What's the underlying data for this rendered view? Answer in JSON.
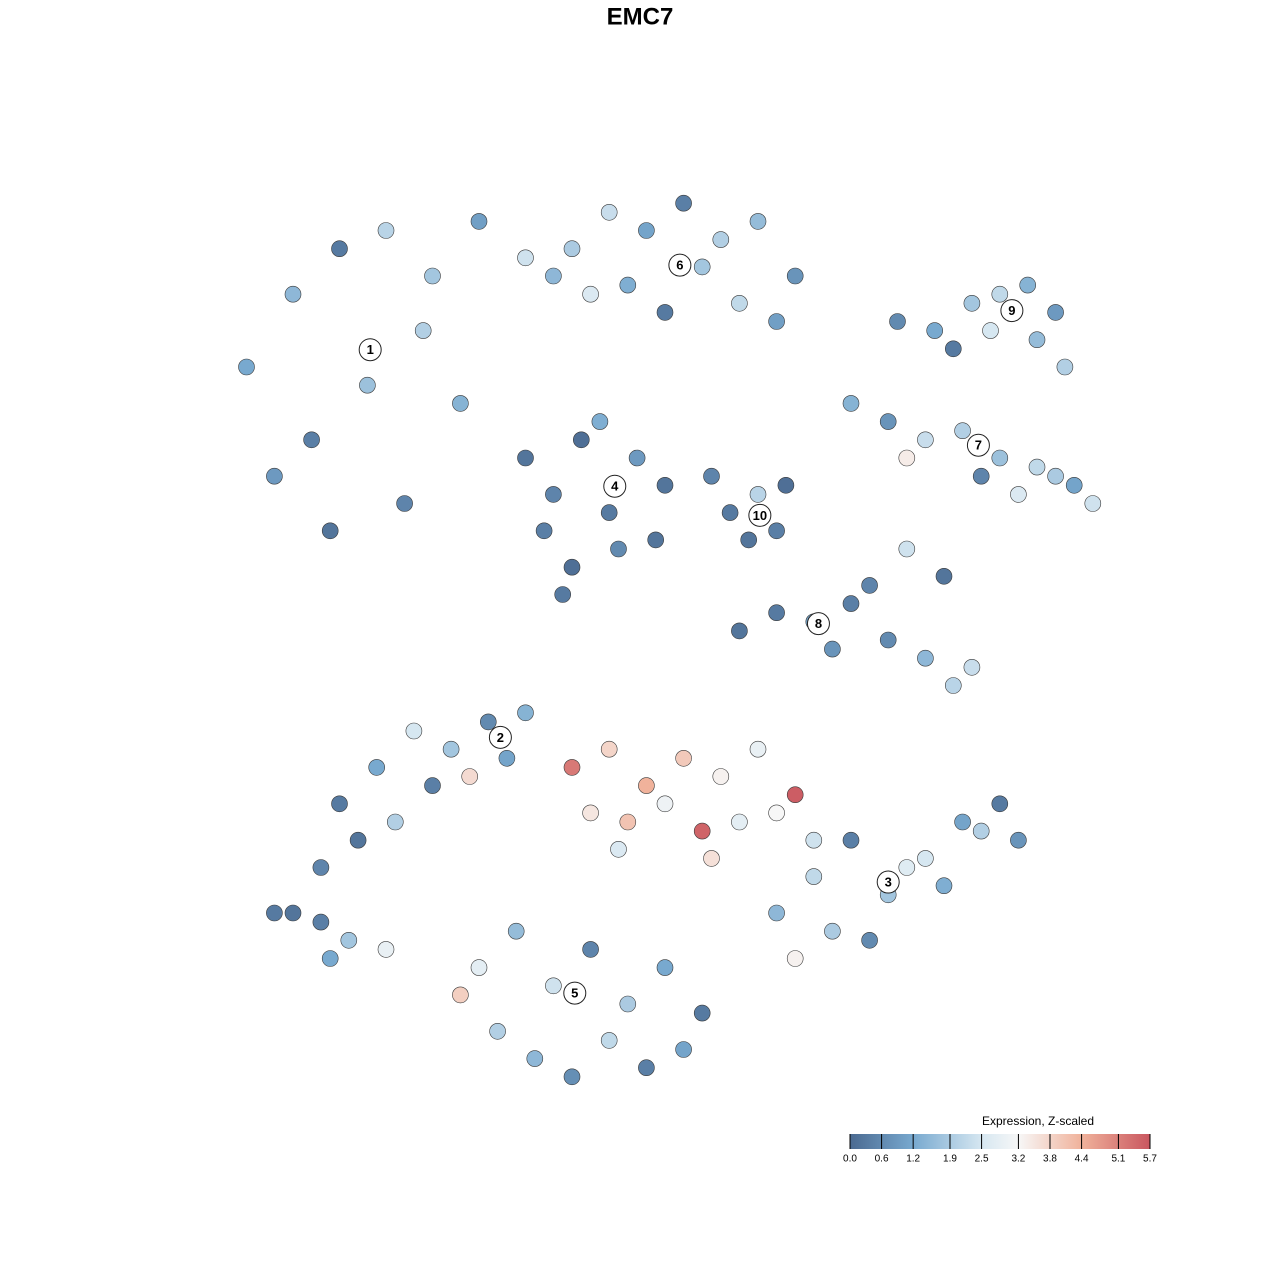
{
  "chart_data": {
    "type": "scatter",
    "title": "EMC7",
    "xlim": [
      0,
      100
    ],
    "ylim": [
      0,
      100
    ],
    "x": [
      5,
      10,
      15,
      20,
      25,
      30,
      35,
      12,
      18,
      24,
      8,
      28,
      14,
      22,
      40,
      44,
      48,
      52,
      56,
      60,
      64,
      42,
      46,
      50,
      54,
      58,
      62,
      38,
      35,
      38,
      41,
      44,
      47,
      50,
      37,
      40,
      45,
      49,
      43,
      39,
      57,
      60,
      62,
      59,
      55,
      63,
      75,
      79,
      83,
      86,
      89,
      92,
      81,
      85,
      90,
      93,
      70,
      74,
      78,
      82,
      86,
      90,
      94,
      76,
      84,
      88,
      92,
      96,
      58,
      62,
      66,
      70,
      74,
      76,
      80,
      83,
      68,
      72,
      78,
      81,
      15,
      19,
      23,
      27,
      31,
      35,
      17,
      21,
      25,
      29,
      33,
      13,
      40,
      44,
      48,
      52,
      56,
      60,
      64,
      42,
      46,
      50,
      54,
      58,
      62,
      45,
      55,
      66,
      62,
      66,
      70,
      74,
      78,
      82,
      86,
      64,
      68,
      72,
      76,
      80,
      84,
      88,
      30,
      34,
      38,
      42,
      46,
      50,
      54,
      32,
      36,
      40,
      44,
      48,
      52,
      28,
      10,
      13,
      16,
      20,
      14,
      8
    ],
    "y": [
      80,
      88,
      93,
      95,
      90,
      96,
      92,
      72,
      78,
      84,
      68,
      76,
      62,
      65,
      93,
      97,
      95,
      98,
      94,
      96,
      90,
      88,
      89,
      86,
      91,
      87,
      85,
      90,
      70,
      66,
      72,
      64,
      70,
      67,
      62,
      58,
      60,
      61,
      74,
      55,
      64,
      66,
      62,
      61,
      68,
      67,
      85,
      84,
      87,
      88,
      89,
      86,
      82,
      84,
      83,
      80,
      76,
      74,
      72,
      73,
      70,
      69,
      67,
      70,
      68,
      66,
      68,
      65,
      51,
      53,
      52,
      54,
      50,
      60,
      57,
      47,
      49,
      56,
      48,
      45,
      32,
      36,
      40,
      38,
      41,
      42,
      28,
      30,
      34,
      35,
      37,
      25,
      36,
      38,
      34,
      37,
      35,
      38,
      33,
      31,
      30,
      32,
      29,
      30,
      31,
      27,
      26,
      28,
      20,
      24,
      28,
      22,
      26,
      30,
      32,
      15,
      18,
      17,
      25,
      23,
      29,
      28,
      14,
      18,
      12,
      16,
      10,
      14,
      9,
      7,
      4,
      2,
      6,
      3,
      5,
      11,
      20,
      19,
      17,
      16,
      15,
      20
    ],
    "values": [
      1.2,
      1.5,
      0.3,
      2.1,
      1.8,
      1.0,
      2.4,
      0.4,
      1.7,
      2.0,
      0.9,
      1.4,
      0.2,
      0.5,
      1.9,
      2.3,
      1.1,
      0.4,
      2.0,
      1.6,
      0.8,
      2.6,
      1.3,
      0.3,
      1.8,
      2.2,
      1.0,
      1.5,
      0.2,
      0.5,
      0.1,
      0.3,
      0.9,
      0.2,
      0.4,
      0.1,
      0.6,
      0.2,
      1.3,
      0.3,
      0.3,
      2.1,
      0.4,
      0.2,
      0.5,
      0.1,
      0.6,
      1.2,
      1.8,
      2.2,
      1.4,
      0.9,
      0.3,
      2.5,
      1.6,
      2.0,
      1.4,
      0.8,
      2.3,
      2.0,
      1.7,
      2.2,
      1.1,
      3.4,
      0.5,
      2.6,
      1.9,
      2.4,
      0.2,
      0.3,
      1.1,
      0.4,
      0.6,
      2.4,
      0.2,
      2.3,
      0.8,
      0.5,
      1.5,
      2.1,
      0.3,
      1.2,
      2.5,
      1.8,
      0.6,
      1.4,
      0.2,
      2.0,
      0.4,
      3.7,
      1.1,
      0.5,
      5.2,
      3.8,
      4.4,
      4.0,
      3.3,
      2.9,
      5.6,
      3.5,
      4.1,
      3.0,
      5.5,
      2.8,
      3.2,
      2.6,
      3.6,
      2.4,
      1.5,
      2.2,
      0.4,
      1.8,
      2.5,
      1.1,
      0.3,
      3.3,
      1.9,
      0.6,
      2.7,
      1.3,
      2.0,
      0.8,
      2.8,
      1.6,
      2.4,
      0.5,
      1.9,
      1.2,
      0.3,
      2.0,
      1.5,
      0.7,
      2.2,
      0.4,
      1.1,
      3.9,
      0.2,
      0.4,
      1.8,
      2.9,
      1.2,
      0.3
    ],
    "clusters": [
      {
        "label": "1",
        "x": 18.3,
        "y": 81.9
      },
      {
        "label": "2",
        "x": 32.3,
        "y": 39.3
      },
      {
        "label": "3",
        "x": 74,
        "y": 23.4
      },
      {
        "label": "4",
        "x": 44.6,
        "y": 66.9
      },
      {
        "label": "5",
        "x": 40.3,
        "y": 11.2
      },
      {
        "label": "6",
        "x": 51.6,
        "y": 91.2
      },
      {
        "label": "7",
        "x": 83.7,
        "y": 71.4
      },
      {
        "label": "8",
        "x": 66.5,
        "y": 51.8
      },
      {
        "label": "9",
        "x": 87.3,
        "y": 86.2
      },
      {
        "label": "10",
        "x": 60.2,
        "y": 63.7
      }
    ],
    "colorbar": {
      "title": "Expression, Z-scaled",
      "lim": [
        0,
        5.7
      ],
      "ticks": [
        {
          "value": 0,
          "label": "0.0"
        },
        0.6,
        1.2,
        1.9,
        2.5,
        3.2,
        3.8,
        4.4,
        5.1,
        5.7
      ],
      "colormap": [
        {
          "value": 0,
          "color": "#4b6a91"
        },
        {
          "value": 1.2,
          "color": "#78a9cf"
        },
        {
          "value": 2.5,
          "color": "#d6e7f1"
        },
        {
          "value": 3.2,
          "color": "#f7f7f7"
        },
        {
          "value": 4.4,
          "color": "#f0b29b"
        },
        {
          "value": 5.7,
          "color": "#c9565f"
        }
      ]
    }
  }
}
